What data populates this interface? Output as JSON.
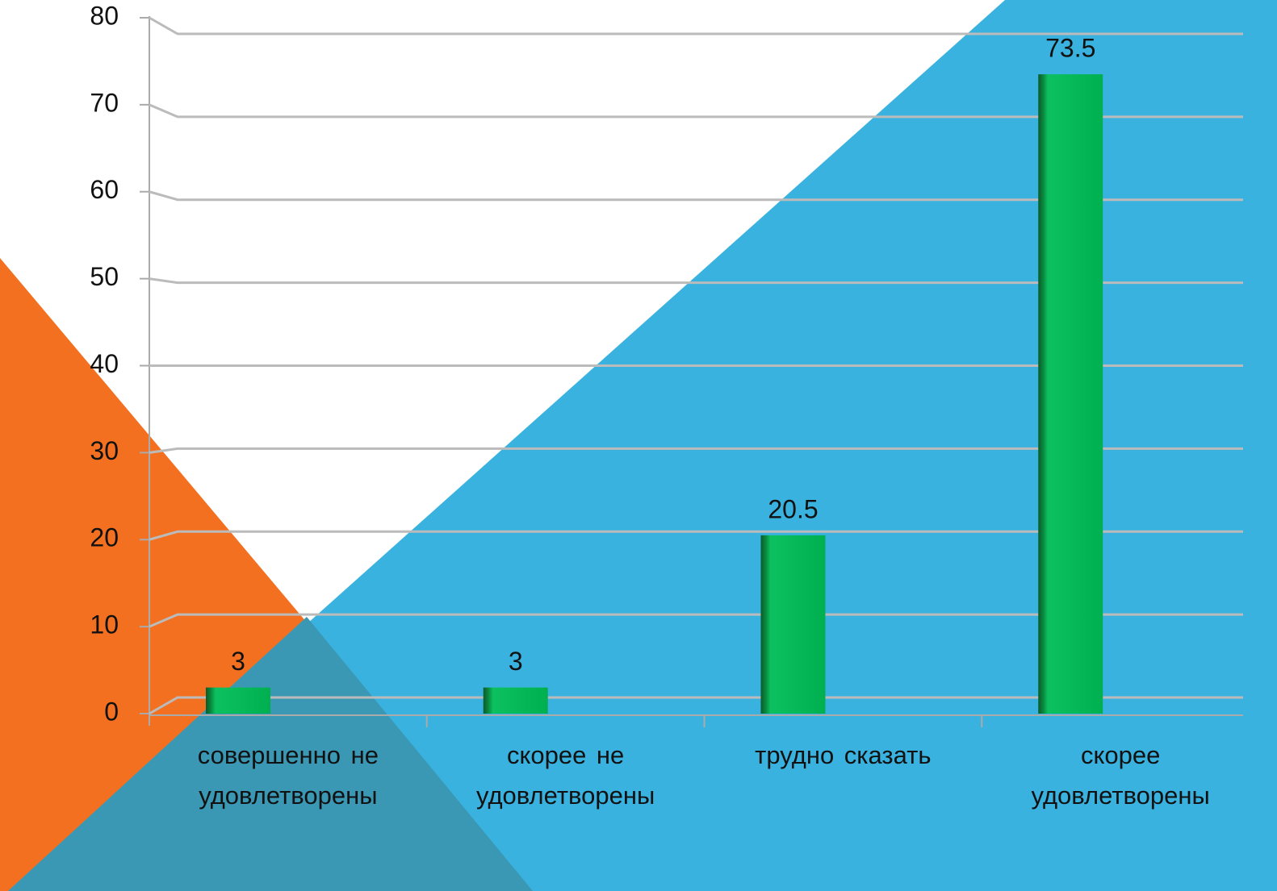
{
  "chart_data": {
    "type": "bar",
    "categories": [
      "совершенно не удовлетворены",
      "скорее не удовлетворены",
      "трудно сказать",
      "скорее удовлетворены"
    ],
    "values": [
      3,
      3,
      20.5,
      73.5
    ],
    "color": "#00b050",
    "ylim": [
      0,
      80
    ],
    "yticks": [
      0,
      10,
      20,
      30,
      40,
      50,
      60,
      70,
      80
    ],
    "grid": true
  }
}
